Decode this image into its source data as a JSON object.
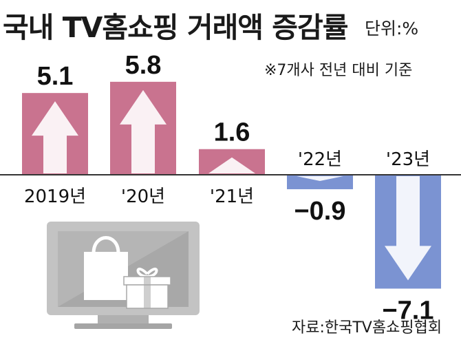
{
  "header": {
    "title": "국내 TV홈쇼핑 거래액 증감률",
    "unit": "단위:%",
    "note": "※7개사 전년 대비 기준"
  },
  "footer": {
    "source": "자료:한국TV홈쇼핑협회"
  },
  "colors": {
    "positive": "#c9738f",
    "negative": "#7b93d2",
    "axis": "#333333",
    "tv_body": "#c3c3c3",
    "tv_screen": "#a5a5a5"
  },
  "chart_data": {
    "type": "bar",
    "categories": [
      "2019년",
      "'20년",
      "'21년",
      "'22년",
      "'23년"
    ],
    "values": [
      5.1,
      5.8,
      1.6,
      -0.9,
      -7.1
    ],
    "value_labels": [
      "5.1",
      "5.8",
      "1.6",
      "−0.9",
      "−7.1"
    ],
    "title": "국내 TV홈쇼핑 거래액 증감률",
    "ylabel": "단위:%",
    "ylim": [
      -7.1,
      5.8
    ],
    "grid": false,
    "legend": "none"
  }
}
